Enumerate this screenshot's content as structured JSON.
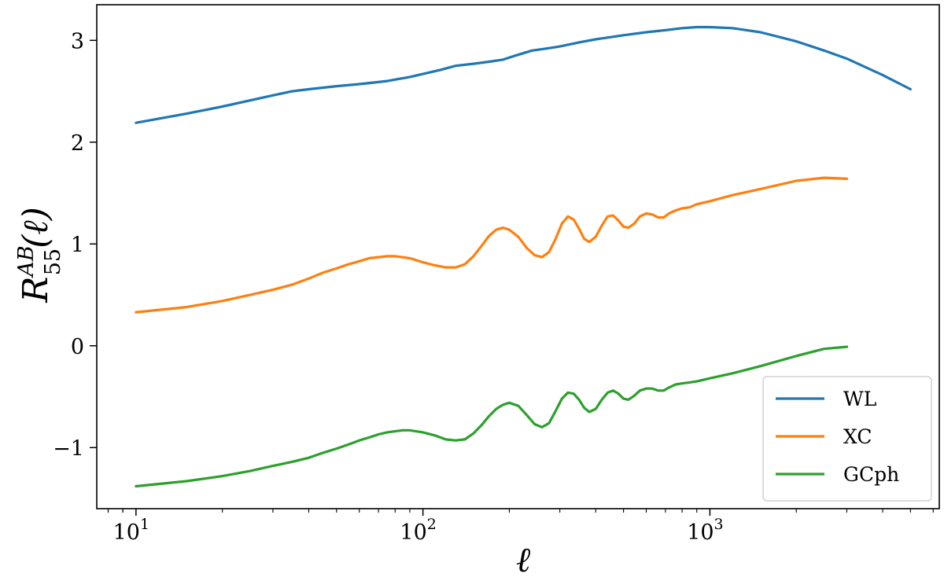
{
  "chart_data": {
    "type": "line",
    "xlabel": "ℓ",
    "ylabel": {
      "symbol": "R",
      "superscript": "AB",
      "subscript": "55",
      "argument": "(ℓ)"
    },
    "xscale": "log",
    "xlim": [
      7.3,
      6300
    ],
    "ylim": [
      -1.6,
      3.35
    ],
    "x_ticks": [
      {
        "value": 10,
        "base": "10",
        "exponent": "1"
      },
      {
        "value": 100,
        "base": "10",
        "exponent": "2"
      },
      {
        "value": 1000,
        "base": "10",
        "exponent": "3"
      }
    ],
    "y_ticks": [
      {
        "value": -1,
        "label": "−1"
      },
      {
        "value": 0,
        "label": "0"
      },
      {
        "value": 1,
        "label": "1"
      },
      {
        "value": 2,
        "label": "2"
      },
      {
        "value": 3,
        "label": "3"
      }
    ],
    "grid": false,
    "legend": {
      "placement": "bottom-right"
    },
    "series": [
      {
        "name": "WL",
        "color": "#1f77b4",
        "points": [
          [
            10,
            2.19
          ],
          [
            15,
            2.28
          ],
          [
            20,
            2.35
          ],
          [
            25,
            2.41
          ],
          [
            30,
            2.46
          ],
          [
            35,
            2.5
          ],
          [
            40,
            2.52
          ],
          [
            50,
            2.55
          ],
          [
            60,
            2.57
          ],
          [
            75,
            2.6
          ],
          [
            90,
            2.64
          ],
          [
            100,
            2.67
          ],
          [
            115,
            2.71
          ],
          [
            130,
            2.75
          ],
          [
            150,
            2.77
          ],
          [
            170,
            2.79
          ],
          [
            190,
            2.81
          ],
          [
            210,
            2.85
          ],
          [
            240,
            2.9
          ],
          [
            270,
            2.92
          ],
          [
            300,
            2.94
          ],
          [
            350,
            2.98
          ],
          [
            400,
            3.01
          ],
          [
            500,
            3.05
          ],
          [
            600,
            3.08
          ],
          [
            700,
            3.1
          ],
          [
            800,
            3.12
          ],
          [
            900,
            3.13
          ],
          [
            1000,
            3.13
          ],
          [
            1200,
            3.12
          ],
          [
            1500,
            3.08
          ],
          [
            2000,
            2.99
          ],
          [
            2500,
            2.9
          ],
          [
            3000,
            2.82
          ],
          [
            4000,
            2.66
          ],
          [
            5000,
            2.52
          ]
        ]
      },
      {
        "name": "XC",
        "color": "#ff7f0e",
        "points": [
          [
            10,
            0.33
          ],
          [
            15,
            0.38
          ],
          [
            20,
            0.44
          ],
          [
            25,
            0.5
          ],
          [
            30,
            0.55
          ],
          [
            35,
            0.6
          ],
          [
            40,
            0.66
          ],
          [
            45,
            0.72
          ],
          [
            50,
            0.76
          ],
          [
            55,
            0.8
          ],
          [
            60,
            0.83
          ],
          [
            65,
            0.86
          ],
          [
            70,
            0.87
          ],
          [
            75,
            0.88
          ],
          [
            80,
            0.88
          ],
          [
            90,
            0.86
          ],
          [
            100,
            0.82
          ],
          [
            110,
            0.79
          ],
          [
            120,
            0.77
          ],
          [
            130,
            0.77
          ],
          [
            140,
            0.8
          ],
          [
            150,
            0.88
          ],
          [
            160,
            0.98
          ],
          [
            170,
            1.08
          ],
          [
            180,
            1.14
          ],
          [
            190,
            1.16
          ],
          [
            200,
            1.14
          ],
          [
            215,
            1.07
          ],
          [
            230,
            0.96
          ],
          [
            245,
            0.89
          ],
          [
            260,
            0.87
          ],
          [
            275,
            0.92
          ],
          [
            290,
            1.05
          ],
          [
            305,
            1.2
          ],
          [
            320,
            1.27
          ],
          [
            335,
            1.24
          ],
          [
            350,
            1.15
          ],
          [
            365,
            1.05
          ],
          [
            380,
            1.02
          ],
          [
            400,
            1.07
          ],
          [
            420,
            1.18
          ],
          [
            440,
            1.27
          ],
          [
            460,
            1.28
          ],
          [
            480,
            1.23
          ],
          [
            500,
            1.17
          ],
          [
            520,
            1.16
          ],
          [
            545,
            1.2
          ],
          [
            570,
            1.27
          ],
          [
            600,
            1.3
          ],
          [
            630,
            1.29
          ],
          [
            660,
            1.26
          ],
          [
            690,
            1.26
          ],
          [
            720,
            1.3
          ],
          [
            760,
            1.33
          ],
          [
            800,
            1.35
          ],
          [
            850,
            1.36
          ],
          [
            900,
            1.39
          ],
          [
            1000,
            1.42
          ],
          [
            1200,
            1.48
          ],
          [
            1500,
            1.54
          ],
          [
            2000,
            1.62
          ],
          [
            2500,
            1.65
          ],
          [
            3000,
            1.64
          ]
        ]
      },
      {
        "name": "GCph",
        "color": "#2ca02c",
        "points": [
          [
            10,
            -1.38
          ],
          [
            15,
            -1.33
          ],
          [
            20,
            -1.28
          ],
          [
            25,
            -1.23
          ],
          [
            30,
            -1.18
          ],
          [
            35,
            -1.14
          ],
          [
            40,
            -1.1
          ],
          [
            45,
            -1.05
          ],
          [
            50,
            -1.01
          ],
          [
            55,
            -0.97
          ],
          [
            60,
            -0.93
          ],
          [
            65,
            -0.9
          ],
          [
            70,
            -0.87
          ],
          [
            75,
            -0.85
          ],
          [
            80,
            -0.84
          ],
          [
            85,
            -0.83
          ],
          [
            90,
            -0.83
          ],
          [
            100,
            -0.85
          ],
          [
            110,
            -0.88
          ],
          [
            120,
            -0.92
          ],
          [
            130,
            -0.93
          ],
          [
            140,
            -0.92
          ],
          [
            150,
            -0.86
          ],
          [
            160,
            -0.78
          ],
          [
            170,
            -0.69
          ],
          [
            180,
            -0.62
          ],
          [
            190,
            -0.58
          ],
          [
            200,
            -0.56
          ],
          [
            215,
            -0.59
          ],
          [
            230,
            -0.68
          ],
          [
            245,
            -0.77
          ],
          [
            260,
            -0.8
          ],
          [
            275,
            -0.76
          ],
          [
            290,
            -0.64
          ],
          [
            305,
            -0.52
          ],
          [
            320,
            -0.46
          ],
          [
            335,
            -0.47
          ],
          [
            350,
            -0.53
          ],
          [
            365,
            -0.61
          ],
          [
            380,
            -0.65
          ],
          [
            400,
            -0.62
          ],
          [
            420,
            -0.53
          ],
          [
            440,
            -0.46
          ],
          [
            460,
            -0.44
          ],
          [
            480,
            -0.47
          ],
          [
            500,
            -0.52
          ],
          [
            520,
            -0.53
          ],
          [
            545,
            -0.49
          ],
          [
            570,
            -0.44
          ],
          [
            600,
            -0.42
          ],
          [
            630,
            -0.42
          ],
          [
            660,
            -0.44
          ],
          [
            690,
            -0.44
          ],
          [
            720,
            -0.41
          ],
          [
            760,
            -0.38
          ],
          [
            800,
            -0.37
          ],
          [
            850,
            -0.36
          ],
          [
            900,
            -0.35
          ],
          [
            1000,
            -0.32
          ],
          [
            1200,
            -0.27
          ],
          [
            1500,
            -0.2
          ],
          [
            2000,
            -0.1
          ],
          [
            2500,
            -0.03
          ],
          [
            3000,
            -0.01
          ]
        ]
      }
    ]
  }
}
